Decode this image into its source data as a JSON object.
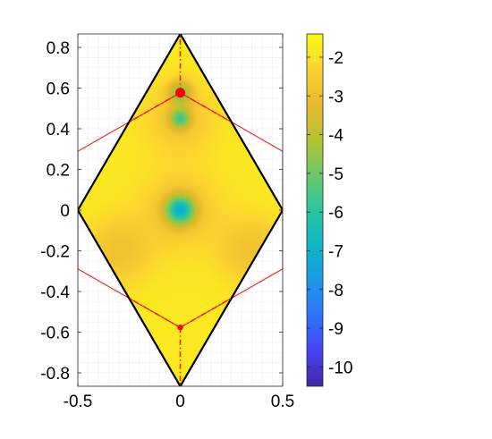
{
  "chart_data": {
    "type": "heatmap",
    "title": "",
    "xlabel": "",
    "ylabel": "",
    "xlim": [
      -0.5,
      0.5
    ],
    "ylim": [
      -0.866,
      0.866
    ],
    "grid": true,
    "x_ticks": [
      -0.5,
      0,
      0.5
    ],
    "x_tick_labels": [
      "-0.5",
      "0",
      "0.5"
    ],
    "y_ticks": [
      0.8,
      0.6,
      0.4,
      0.2,
      0,
      -0.2,
      -0.4,
      -0.6,
      -0.8
    ],
    "y_tick_labels": [
      "0.8",
      "0.6",
      "0.4",
      "0.2",
      "0",
      "-0.2",
      "-0.4",
      "-0.6",
      "-0.8"
    ],
    "colorbar": {
      "colormap": "parula",
      "range": [
        -10.5,
        -1.4
      ],
      "ticks": [
        -2,
        -3,
        -4,
        -5,
        -6,
        -7,
        -8,
        -9,
        -10
      ],
      "tick_labels": [
        "-2",
        "-3",
        "-4",
        "-5",
        "-6",
        "-7",
        "-8",
        "-9",
        "-10"
      ],
      "colors": [
        "#3e26a8",
        "#4743f3",
        "#2f73ff",
        "#1d98e3",
        "#0db7c4",
        "#2cc49e",
        "#6cc86a",
        "#b4c330",
        "#e8b92c",
        "#fbd130",
        "#f9fb14"
      ]
    },
    "field": {
      "base_value": -1.8,
      "minima": [
        {
          "x": 0,
          "y": 0,
          "value": -6.3,
          "width": 0.05
        },
        {
          "x": 0,
          "y": 0.45,
          "value": -4.8,
          "width": 0.035
        },
        {
          "x": 0,
          "y": 0.577,
          "value": -4.5,
          "width": 0.04
        },
        {
          "x": -0.3,
          "y": -0.2,
          "value": -2.9,
          "width": 0.11
        },
        {
          "x": 0.35,
          "y": -0.2,
          "value": -2.9,
          "width": 0.11
        },
        {
          "x": 0,
          "y": 0.45,
          "value": -2.7,
          "width": 0.12
        },
        {
          "x": 0,
          "y": 0,
          "value": -2.7,
          "width": 0.14
        }
      ]
    },
    "brillouin_zone": {
      "color": "#e8231c",
      "vertices": [
        [
          0,
          0.577
        ],
        [
          0.5,
          0.289
        ],
        [
          0.5,
          -0.289
        ],
        [
          0,
          -0.577
        ],
        [
          -0.5,
          -0.289
        ],
        [
          -0.5,
          0.289
        ]
      ]
    },
    "unit_cell": {
      "color": "#000000",
      "vertices": [
        [
          0,
          0.866
        ],
        [
          0.5,
          0
        ],
        [
          0,
          -0.866
        ],
        [
          -0.5,
          0
        ]
      ]
    },
    "red_segments": [
      [
        [
          0,
          0.577
        ],
        [
          0,
          0.866
        ]
      ],
      [
        [
          0,
          0.577
        ],
        [
          -0.25,
          0.433
        ]
      ],
      [
        [
          0,
          0.577
        ],
        [
          0.25,
          0.433
        ]
      ],
      [
        [
          0,
          -0.577
        ],
        [
          0,
          -0.866
        ]
      ],
      [
        [
          0,
          -0.577
        ],
        [
          -0.25,
          -0.433
        ]
      ],
      [
        [
          0,
          -0.577
        ],
        [
          0.25,
          -0.433
        ]
      ]
    ],
    "markers": [
      {
        "x": 0,
        "y": 0.577,
        "color": "#ff0000",
        "size": "large"
      },
      {
        "x": 0,
        "y": -0.577,
        "color": "#ff0000",
        "size": "small"
      }
    ]
  }
}
